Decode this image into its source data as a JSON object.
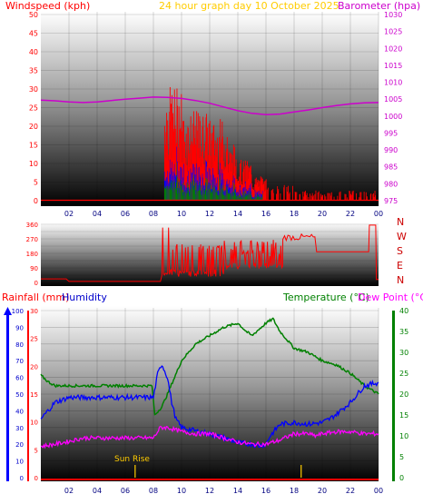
{
  "header": {
    "wind_title": "Windspeed (kph)",
    "graph_title": "24 hour graph day   10 October 2025",
    "baro_title": "Barometer (hpa)"
  },
  "directions": [
    "N",
    "W",
    "S",
    "E",
    "N"
  ],
  "bottom_titles": {
    "rainfall": "Rainfall (mm)",
    "humidity": "Humidity",
    "temperature": "Temperature (°C)",
    "dewpoint": "Dew Point (°C)"
  },
  "sunrise_label": "Sun Rise",
  "colors": {
    "wind": "#ff0000",
    "gust": "#ff0000",
    "avg": "#0000ff",
    "low": "#008000",
    "barometer": "#cc00cc",
    "direction": "#ff0000",
    "temperature": "#008000",
    "humidity": "#0000ff",
    "dewpoint": "#ff00ff",
    "rain": "#ff0000",
    "sun": "#ffcc00",
    "title": "#ffcc00"
  },
  "chart_data": [
    {
      "type": "line",
      "panel": "wind-barometer",
      "xticks": [
        "02",
        "04",
        "06",
        "08",
        "10",
        "12",
        "14",
        "16",
        "18",
        "20",
        "22",
        "00"
      ],
      "y_left": {
        "label": "Windspeed (kph)",
        "ticks": [
          0,
          5,
          10,
          15,
          20,
          25,
          30,
          35,
          40,
          45,
          50
        ],
        "range": [
          0,
          50
        ]
      },
      "y_right": {
        "label": "Barometer (hpa)",
        "ticks": [
          975,
          980,
          985,
          990,
          995,
          1000,
          1005,
          1010,
          1015,
          1020,
          1025,
          1030
        ],
        "range": [
          975,
          1030
        ]
      },
      "series": [
        {
          "name": "Barometer",
          "axis": "right",
          "x": [
            0,
            1,
            2,
            3,
            4,
            5,
            6,
            7,
            8,
            9,
            10,
            11,
            12,
            13,
            14,
            15,
            16,
            17,
            18,
            19,
            20,
            21,
            22,
            23,
            24
          ],
          "values": [
            1004.7,
            1004.5,
            1004.2,
            1004.0,
            1004.2,
            1004.6,
            1005.0,
            1005.3,
            1005.6,
            1005.5,
            1005.2,
            1004.6,
            1003.8,
            1002.7,
            1001.6,
            1000.8,
            1000.4,
            1000.6,
            1001.2,
            1001.8,
            1002.5,
            1003.1,
            1003.6,
            1003.9,
            1004.0
          ]
        }
      ]
    },
    {
      "type": "line",
      "panel": "wind-direction",
      "y": {
        "ticks": [
          0,
          45,
          90,
          135,
          180,
          225,
          270,
          315,
          360
        ],
        "range": [
          0,
          360
        ]
      },
      "labels": [
        "N",
        "W",
        "S",
        "E",
        "N"
      ]
    },
    {
      "type": "line",
      "panel": "temperature-humidity-rain",
      "xticks": [
        "02",
        "04",
        "06",
        "08",
        "10",
        "12",
        "14",
        "16",
        "18",
        "20",
        "22",
        "00"
      ],
      "y_humidity": {
        "label": "Humidity",
        "ticks": [
          0,
          10,
          20,
          30,
          40,
          50,
          60,
          70,
          80,
          90,
          100
        ],
        "range": [
          0,
          100
        ]
      },
      "y_rain": {
        "label": "Rainfall (mm)",
        "ticks": [
          0,
          5,
          10,
          15,
          20,
          25,
          30
        ],
        "range": [
          0,
          30
        ]
      },
      "y_temp": {
        "label": "Temperature (°C)",
        "ticks": [
          0,
          5,
          10,
          15,
          20,
          25,
          30,
          35,
          40
        ],
        "range": [
          0,
          40
        ]
      },
      "series": [
        {
          "name": "Temperature",
          "x": [
            0,
            0.5,
            1,
            2,
            3,
            4,
            5,
            6,
            7,
            7.9,
            8.1,
            8.6,
            9,
            9.5,
            10,
            11,
            12,
            13,
            14,
            14.6,
            15,
            16,
            16.5,
            17,
            18,
            19,
            20,
            21,
            22,
            23,
            24
          ],
          "values": [
            24.5,
            23,
            22,
            22,
            22,
            22,
            22,
            22,
            22,
            22,
            15,
            17,
            20,
            24,
            28,
            32,
            34,
            36,
            37,
            35,
            34,
            37,
            38,
            35,
            31,
            30,
            28,
            27,
            25,
            22,
            20
          ]
        },
        {
          "name": "Humidity",
          "x": [
            0,
            0.5,
            1,
            2,
            3,
            4,
            5,
            6,
            7,
            7.5,
            8,
            8.3,
            8.6,
            9,
            9.3,
            9.6,
            10,
            11,
            12,
            13,
            14,
            15,
            15.5,
            16,
            16.3,
            17,
            18,
            19,
            20,
            20.5,
            21,
            22,
            23,
            24
          ],
          "values": [
            35,
            40,
            45,
            48,
            48,
            48,
            48,
            48,
            48,
            48,
            48,
            62,
            68,
            60,
            45,
            35,
            30,
            28,
            26,
            24,
            21,
            20,
            19,
            20,
            25,
            32,
            33,
            32,
            33,
            35,
            38,
            45,
            55,
            57
          ]
        },
        {
          "name": "Dew Point",
          "x": [
            0,
            1,
            2,
            3,
            4,
            5,
            6,
            7,
            8,
            8.5,
            9,
            10,
            11,
            12,
            13,
            14,
            15,
            16,
            17,
            18,
            19,
            19.5,
            20,
            21,
            22,
            23,
            24
          ],
          "values": [
            7.5,
            8,
            8.7,
            9.5,
            9.5,
            9.5,
            9.5,
            9.5,
            9.5,
            12,
            12,
            11,
            10.5,
            10.5,
            9.5,
            8.5,
            8,
            8,
            9,
            10.5,
            10.5,
            10,
            10.5,
            11,
            11,
            10.5,
            10.5
          ]
        }
      ]
    }
  ]
}
